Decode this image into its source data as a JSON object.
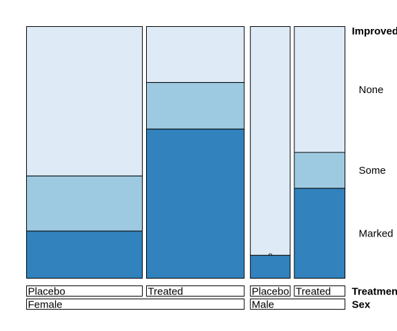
{
  "chart_data": {
    "type": "mosaic",
    "title": "",
    "response": {
      "name": "Improved",
      "levels": [
        "None",
        "Some",
        "Marked"
      ]
    },
    "column_factors": [
      {
        "name": "Treatment",
        "levels": [
          "Placebo",
          "Treated"
        ]
      },
      {
        "name": "Sex",
        "levels": [
          "Female",
          "Male"
        ]
      }
    ],
    "columns": [
      {
        "sex": "Female",
        "treatment": "Placebo",
        "label": "Placebo",
        "counts": {
          "None": 19,
          "Some": 7,
          "Marked": 6
        }
      },
      {
        "sex": "Female",
        "treatment": "Treated",
        "label": "Treated",
        "counts": {
          "None": 6,
          "Some": 5,
          "Marked": 16
        }
      },
      {
        "sex": "Male",
        "treatment": "Placebo",
        "label": "Placebo",
        "counts": {
          "None": 10,
          "Some": 0,
          "Marked": 1
        }
      },
      {
        "sex": "Male",
        "treatment": "Treated",
        "label": "Treated",
        "counts": {
          "None": 7,
          "Some": 2,
          "Marked": 5
        }
      }
    ],
    "sex_groups": [
      {
        "name": "Female"
      },
      {
        "name": "Male"
      }
    ],
    "colors": {
      "None": "#deebf7",
      "Some": "#9ecae1",
      "Marked": "#3182bd"
    },
    "zero_marker": "o"
  }
}
